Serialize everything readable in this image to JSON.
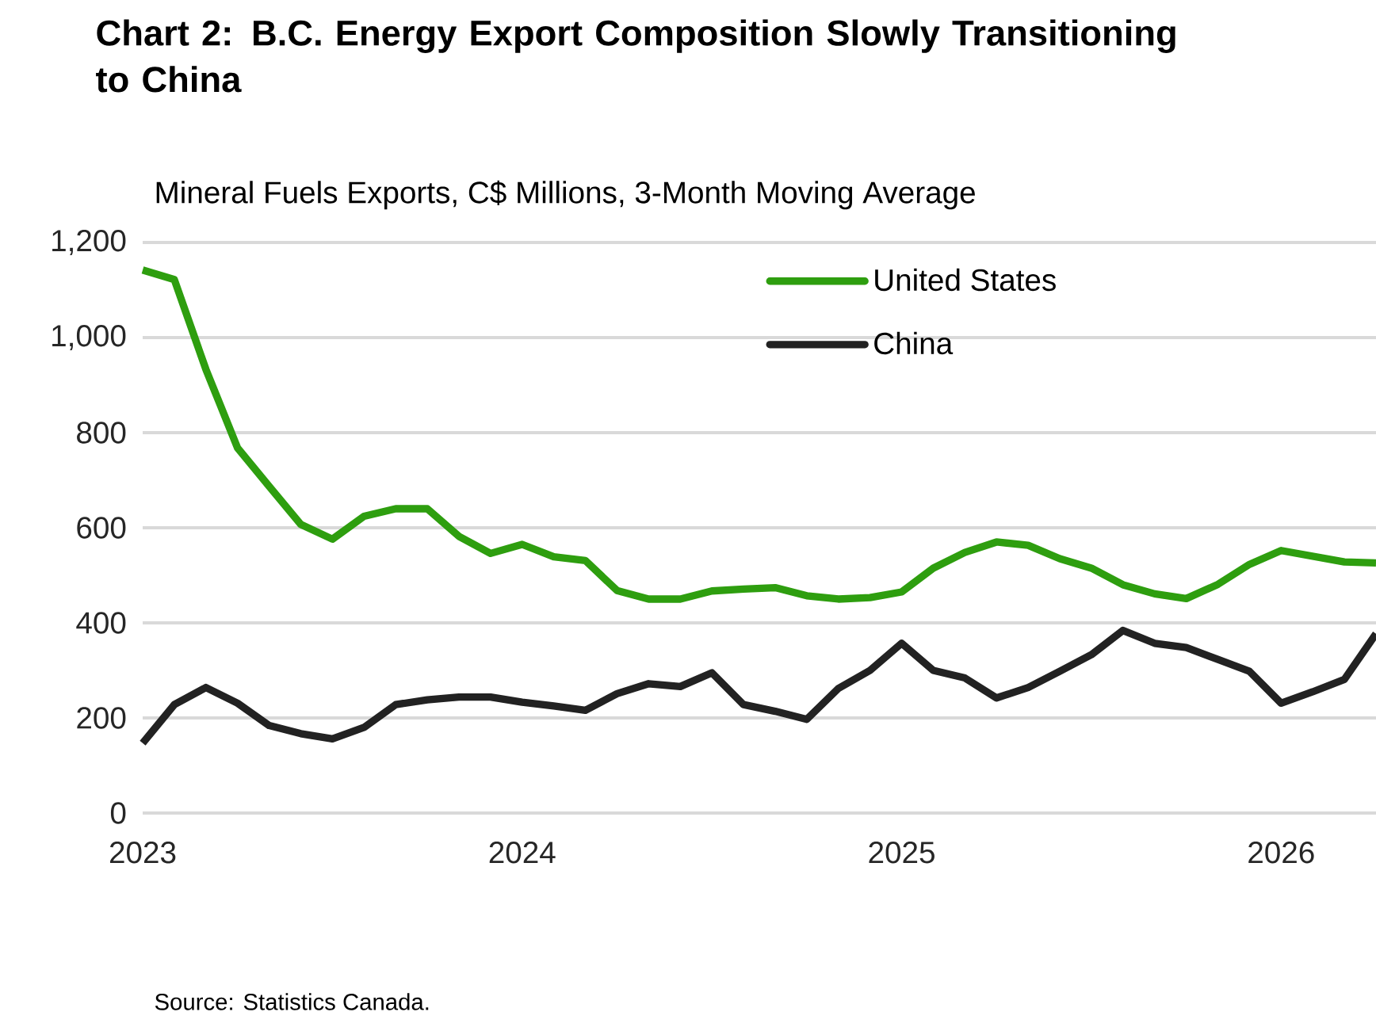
{
  "chart_data": {
    "type": "line",
    "title": "Chart 2: B.C. Energy Export Composition Slowly Transitioning to China",
    "subtitle": "Mineral Fuels Exports, C$ Millions, 3-Month Moving Average",
    "x": [
      "2023-01",
      "2023-02",
      "2023-03",
      "2023-04",
      "2023-05",
      "2023-06",
      "2023-07",
      "2023-08",
      "2023-09",
      "2023-10",
      "2023-11",
      "2023-12",
      "2024-01",
      "2024-02",
      "2024-03",
      "2024-04",
      "2024-05",
      "2024-06",
      "2024-07",
      "2024-08",
      "2024-09",
      "2024-10",
      "2024-11",
      "2024-12",
      "2025-01",
      "2025-02",
      "2025-03",
      "2025-04",
      "2025-05",
      "2025-06",
      "2025-07",
      "2025-08",
      "2025-09",
      "2025-10",
      "2025-11",
      "2025-12",
      "2026-01",
      "2026-02",
      "2026-03",
      "2026-04"
    ],
    "series": [
      {
        "name": "United States",
        "color": "#2e9e0f",
        "values": [
          1142,
          1122,
          933,
          768,
          687,
          607,
          576,
          624,
          640,
          640,
          582,
          546,
          565,
          539,
          531,
          468,
          450,
          450,
          467,
          471,
          474,
          457,
          450,
          453,
          465,
          515,
          548,
          570,
          563,
          535,
          515,
          480,
          461,
          451,
          481,
          523,
          552,
          540,
          528,
          526
        ]
      },
      {
        "name": "China",
        "color": "#222222",
        "values": [
          147,
          228,
          264,
          231,
          184,
          167,
          156,
          180,
          228,
          238,
          244,
          244,
          233,
          225,
          216,
          251,
          272,
          266,
          295,
          228,
          214,
          197,
          262,
          300,
          357,
          300,
          284,
          242,
          264,
          298,
          333,
          384,
          357,
          348,
          323,
          298,
          231,
          255,
          281,
          377
        ]
      }
    ],
    "xlim": [
      "2023-01",
      "2026-04"
    ],
    "xticks": [
      "2023",
      "2024",
      "2025",
      "2026"
    ],
    "ylim": [
      0,
      1200
    ],
    "yticks": [
      0,
      200,
      400,
      600,
      800,
      {
        "value": 1000,
        "label": "1,000"
      },
      {
        "value": 1200,
        "label": "1,200"
      }
    ],
    "grid": "y",
    "legend": "top right",
    "line_style": "solid",
    "marker": "none",
    "annotations": [
      "Source: Statistics Canada."
    ]
  }
}
